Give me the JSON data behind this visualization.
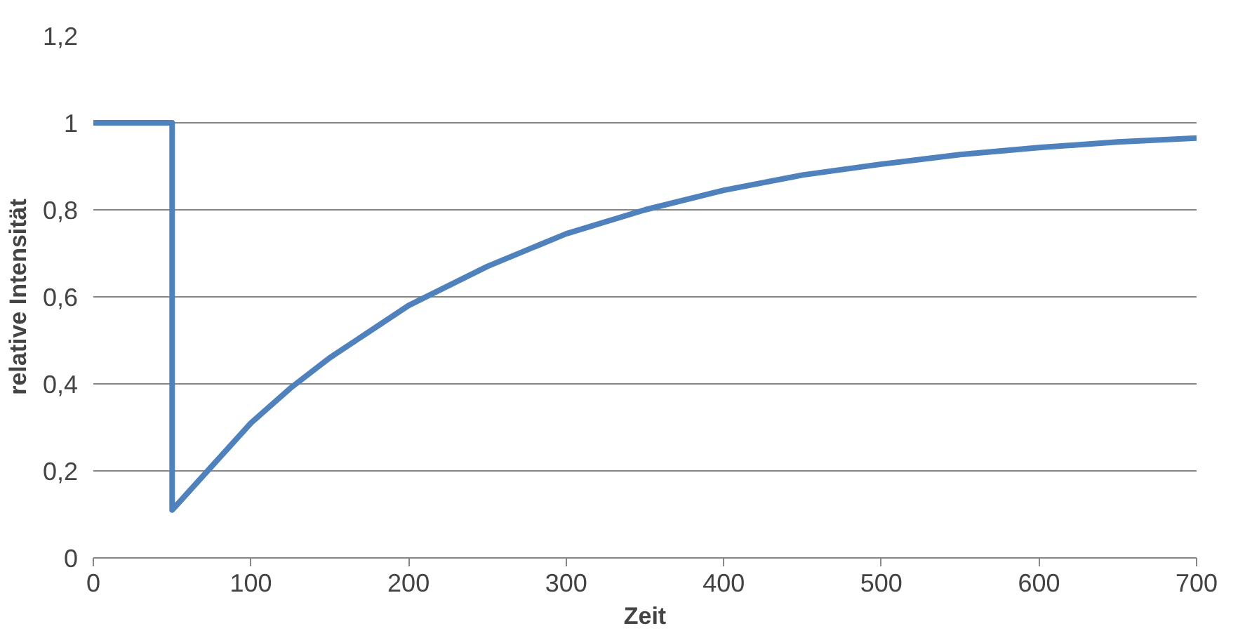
{
  "chart_data": {
    "type": "line",
    "xlabel": "Zeit",
    "ylabel": "relative Intensität",
    "x": [
      0,
      50,
      50,
      60,
      75,
      100,
      125,
      150,
      175,
      200,
      250,
      300,
      350,
      400,
      450,
      500,
      550,
      600,
      650,
      700
    ],
    "series": [
      {
        "color": "#4f81bd",
        "values": [
          1,
          1,
          0.11,
          0.15,
          0.21,
          0.31,
          0.39,
          0.46,
          0.52,
          0.58,
          0.67,
          0.745,
          0.8,
          0.845,
          0.88,
          0.905,
          0.927,
          0.943,
          0.956,
          0.965
        ]
      }
    ],
    "xlim": [
      0,
      700
    ],
    "xticks": [
      0,
      100,
      200,
      300,
      400,
      500,
      600,
      700
    ],
    "ylim": [
      0,
      1.2
    ],
    "yticks": [
      {
        "value": 0,
        "label": "0"
      },
      {
        "value": 0.2,
        "label": "0,2"
      },
      {
        "value": 0.4,
        "label": "0,4"
      },
      {
        "value": 0.6,
        "label": "0,6"
      },
      {
        "value": 0.8,
        "label": "0,8"
      },
      {
        "value": 1,
        "label": "1"
      },
      {
        "value": 1.2,
        "label": "1,2"
      }
    ],
    "grid": "y",
    "marker": "none",
    "line_style": "solid"
  }
}
